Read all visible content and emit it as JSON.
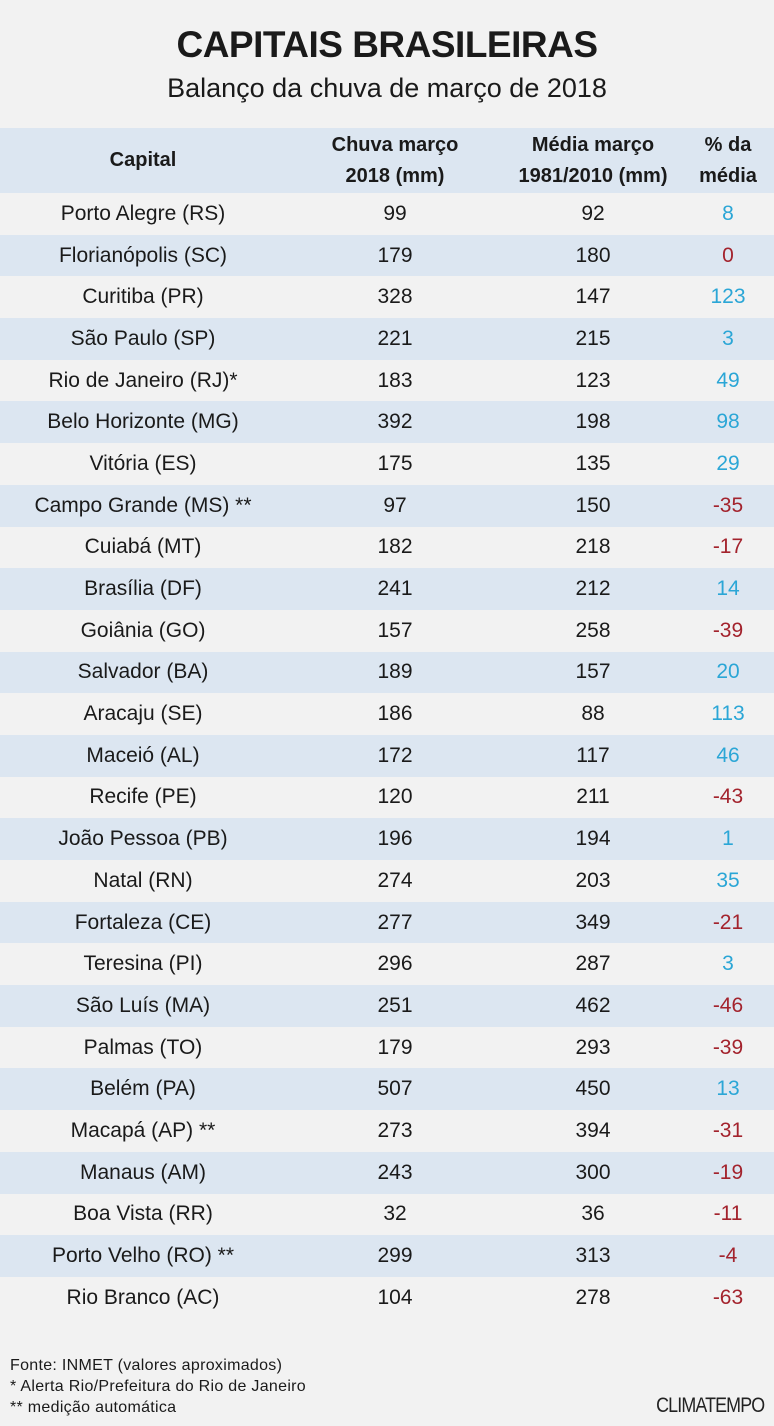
{
  "title": "CAPITAIS BRASILEIRAS",
  "subtitle": "Balanço da chuva de março de 2018",
  "colors": {
    "positive": "#2ba6d6",
    "negative": "#a3232d",
    "row_alt": "#dce6f1",
    "background": "#f2f2f2"
  },
  "chart_data": {
    "type": "table",
    "columns": [
      "Capital",
      "Chuva março 2018 (mm)",
      "Média março 1981/2010 (mm)",
      "% da média"
    ],
    "column_lines": [
      [
        "Capital"
      ],
      [
        "Chuva março",
        "2018 (mm)"
      ],
      [
        "Média março",
        "1981/2010 (mm)"
      ],
      [
        "% da",
        "média"
      ]
    ],
    "rows": [
      [
        "Porto Alegre (RS)",
        99,
        92,
        8
      ],
      [
        "Florianópolis (SC)",
        179,
        180,
        0
      ],
      [
        "Curitiba (PR)",
        328,
        147,
        123
      ],
      [
        "São Paulo (SP)",
        221,
        215,
        3
      ],
      [
        "Rio de Janeiro (RJ)*",
        183,
        123,
        49
      ],
      [
        "Belo Horizonte  (MG)",
        392,
        198,
        98
      ],
      [
        "Vitória (ES)",
        175,
        135,
        29
      ],
      [
        "Campo Grande (MS) **",
        97,
        150,
        -35
      ],
      [
        "Cuiabá (MT)",
        182,
        218,
        -17
      ],
      [
        "Brasília (DF)",
        241,
        212,
        14
      ],
      [
        "Goiânia (GO)",
        157,
        258,
        -39
      ],
      [
        "Salvador (BA)",
        189,
        157,
        20
      ],
      [
        "Aracaju (SE)",
        186,
        88,
        113
      ],
      [
        "Maceió (AL)",
        172,
        117,
        46
      ],
      [
        "Recife (PE)",
        120,
        211,
        -43
      ],
      [
        "João Pessoa (PB)",
        196,
        194,
        1
      ],
      [
        "Natal (RN)",
        274,
        203,
        35
      ],
      [
        "Fortaleza (CE)",
        277,
        349,
        -21
      ],
      [
        "Teresina (PI)",
        296,
        287,
        3
      ],
      [
        "São Luís (MA)",
        251,
        462,
        -46
      ],
      [
        "Palmas (TO)",
        179,
        293,
        -39
      ],
      [
        "Belém (PA)",
        507,
        450,
        13
      ],
      [
        "Macapá (AP) **",
        273,
        394,
        -31
      ],
      [
        "Manaus (AM)",
        243,
        300,
        -19
      ],
      [
        "Boa Vista (RR)",
        32,
        36,
        -11
      ],
      [
        "Porto Velho (RO) **",
        299,
        313,
        -4
      ],
      [
        "Rio Branco (AC)",
        104,
        278,
        -63
      ]
    ]
  },
  "notes": [
    "Fonte: INMET (valores aproximados)",
    "* Alerta Rio/Prefeitura do Rio de Janeiro",
    "** medição automática"
  ],
  "logo": "CLIMATEMPO"
}
